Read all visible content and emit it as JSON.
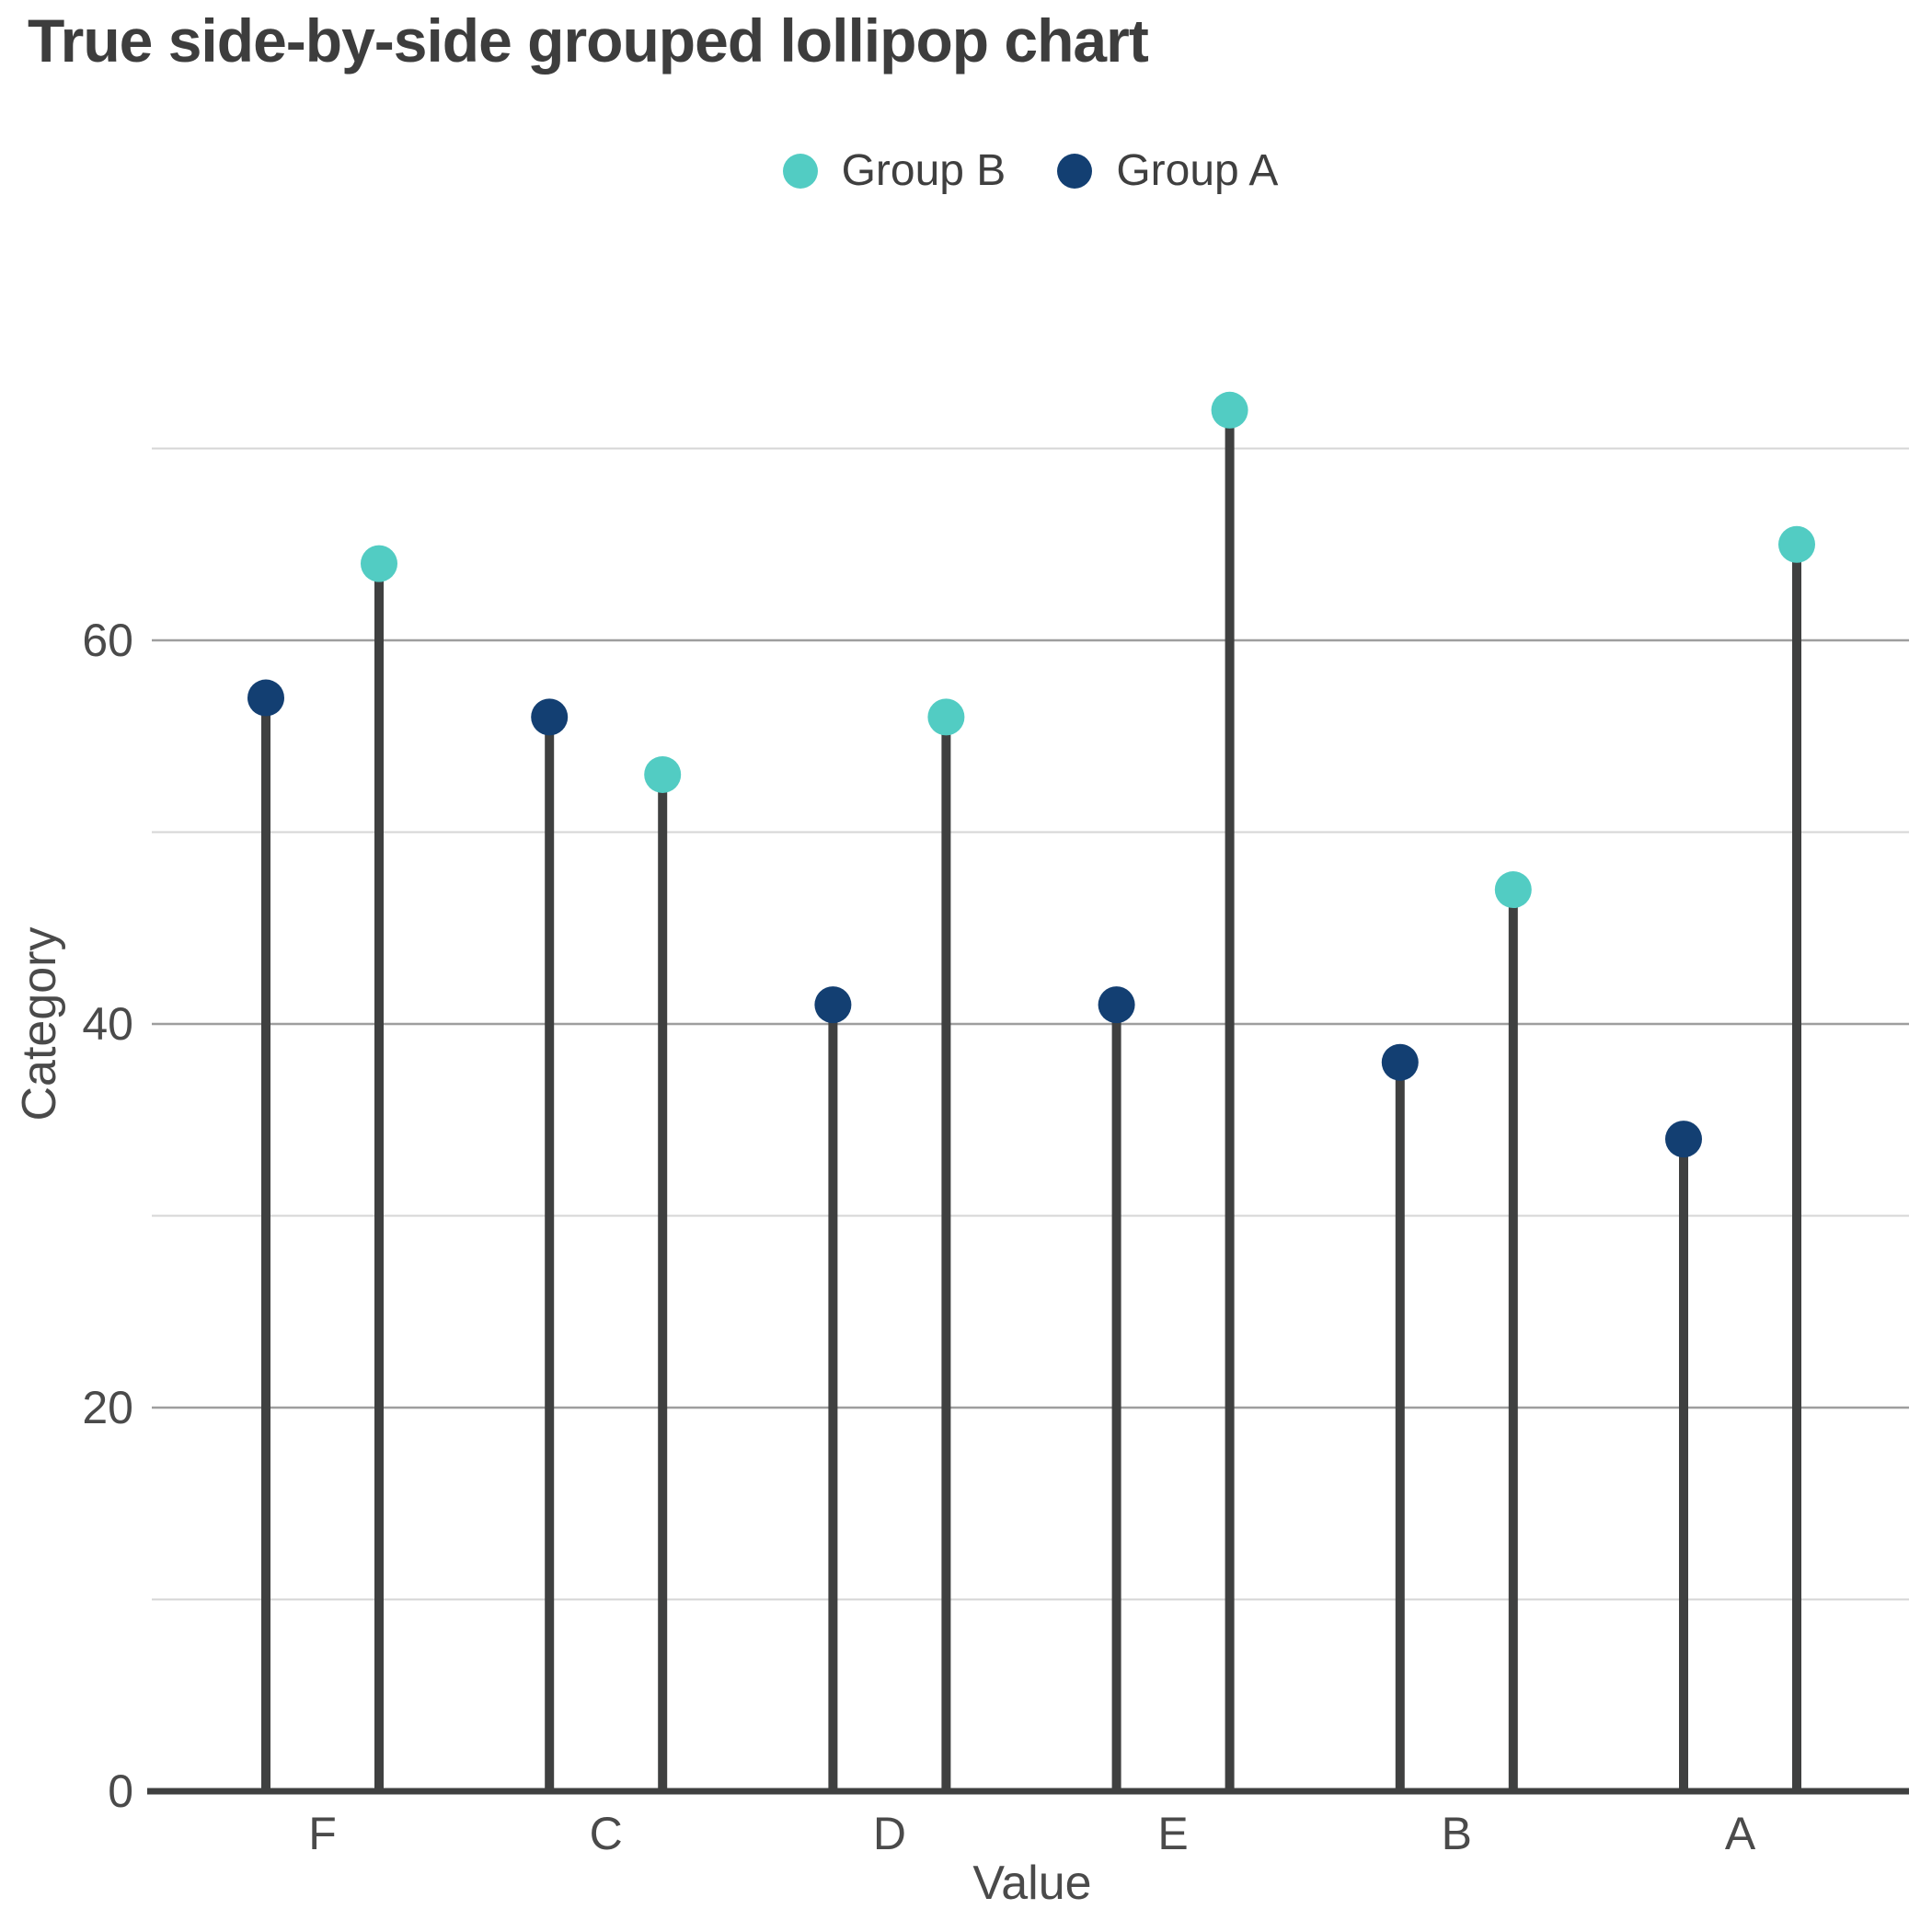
{
  "chart_data": {
    "type": "lollipop",
    "variant": "grouped-side-by-side-vertical",
    "title": "True side-by-side grouped lollipop chart",
    "xlabel": "Value",
    "ylabel": "Category",
    "categories": [
      "F",
      "C",
      "D",
      "E",
      "B",
      "A"
    ],
    "series": [
      {
        "name": "Group B",
        "color": "#52CCC3",
        "side_within_group": "right",
        "values": [
          64,
          53,
          56,
          72,
          47,
          65
        ]
      },
      {
        "name": "Group A",
        "color": "#133F72",
        "side_within_group": "left",
        "values": [
          57,
          56,
          41,
          41,
          38,
          34
        ]
      }
    ],
    "ylim": [
      0,
      75
    ],
    "yticks_labeled": [
      0,
      20,
      40,
      60
    ],
    "gridlines": {
      "major_values": [
        20,
        40,
        60
      ],
      "minor_values": [
        10,
        30,
        50,
        70
      ]
    },
    "legend_position": "top-center",
    "grid": true,
    "colors": {
      "stem": "#3F4040",
      "axis_line": "#3F4040",
      "grid_major": "#9E9E9E",
      "grid_minor": "#D6D6D6",
      "title_text": "#3D3D3D",
      "tick_text": "#4A4A4A",
      "legend_text": "#3F3F3F"
    }
  }
}
